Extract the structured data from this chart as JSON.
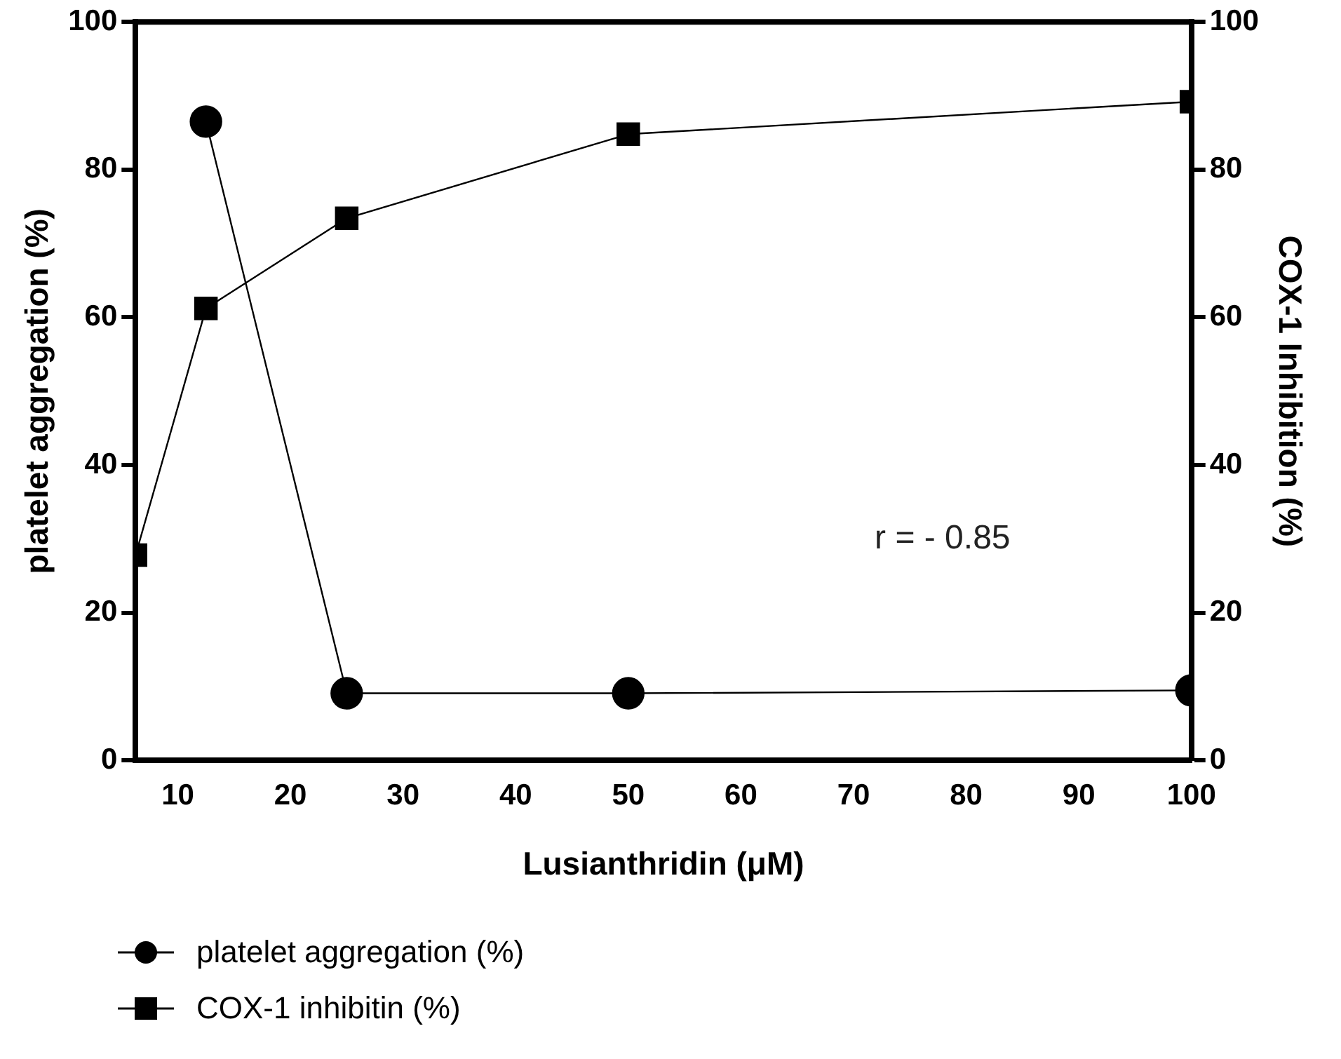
{
  "chart_data": {
    "type": "line",
    "xlabel": "Lusianthridin (μM)",
    "ylabel": "platelet aggregation (%)",
    "y2label": "COX-1 Inhibition (%)",
    "xlim": [
      6.25,
      100
    ],
    "xticks": [
      10,
      20,
      30,
      40,
      50,
      60,
      70,
      80,
      90,
      100
    ],
    "ylim": [
      0,
      100
    ],
    "yticks": [
      0,
      20,
      40,
      60,
      80,
      100
    ],
    "y2lim": [
      0,
      100
    ],
    "y2ticks": [
      0,
      20,
      40,
      60,
      80,
      100
    ],
    "series": [
      {
        "name": "platelet aggregation (%)",
        "color": "#000000",
        "marker": "circle",
        "x": [
          12.5,
          25,
          50,
          100
        ],
        "values": [
          86.5,
          9.1,
          9.1,
          9.5
        ]
      },
      {
        "name": "COX-1 inhibitin (%)",
        "color": "#000000",
        "marker": "square",
        "axis": "y2",
        "x": [
          6.25,
          12.5,
          25,
          50,
          100
        ],
        "values": [
          27.8,
          61.2,
          73.4,
          84.8,
          89.2
        ]
      }
    ],
    "annotations": [
      "r = - 0.85"
    ],
    "grid": false,
    "legend": "bottom left"
  }
}
